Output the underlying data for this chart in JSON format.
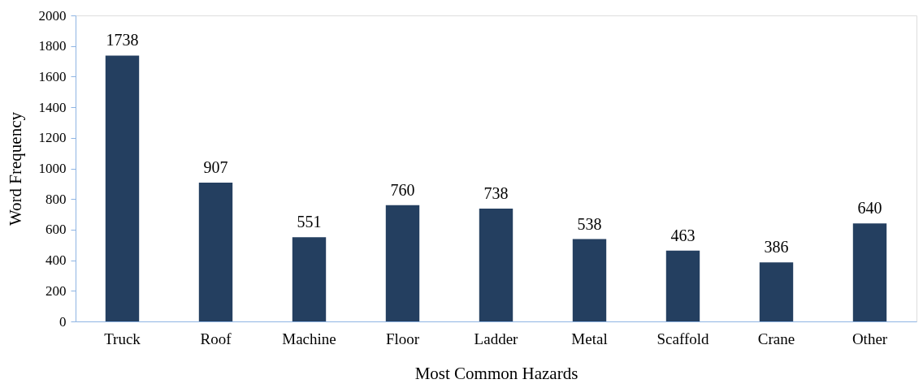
{
  "chart_data": {
    "type": "bar",
    "xlabel": "Most Common Hazards",
    "ylabel": "Word Frequency",
    "categories": [
      "Truck",
      "Roof",
      "Machine",
      "Floor",
      "Ladder",
      "Metal",
      "Scaffold",
      "Crane",
      "Other"
    ],
    "values": [
      1738,
      907,
      551,
      760,
      738,
      538,
      463,
      386,
      640
    ],
    "color": "#243f60",
    "ylim": [
      0,
      2000
    ],
    "yticks": [
      0,
      200,
      400,
      600,
      800,
      1000,
      1200,
      1400,
      1600,
      1800,
      2000
    ],
    "grid": false,
    "data_labels": true
  }
}
